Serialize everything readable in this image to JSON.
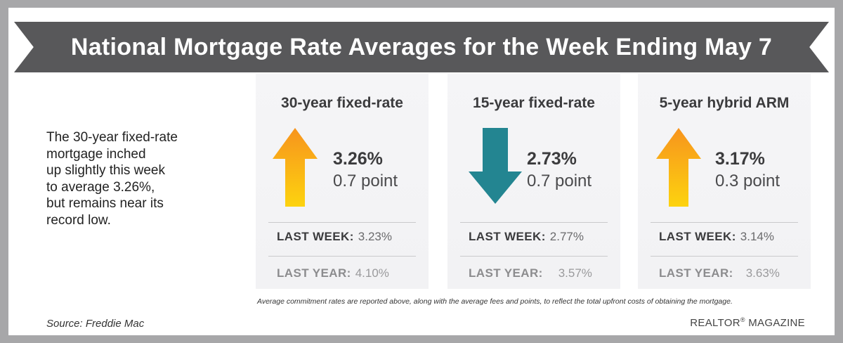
{
  "title": "National Mortgage Rate Averages for the Week Ending May 7",
  "description": [
    "The 30-year fixed-rate",
    "mortgage inched",
    "up slightly this week",
    "to average 3.26%,",
    "but remains near its",
    "record low."
  ],
  "colors": {
    "banner": "#58585a",
    "up_arrow_top": "#f7941d",
    "up_arrow_bottom": "#fdd30f",
    "down_arrow": "#238591"
  },
  "last_week_label": "LAST WEEK:",
  "last_year_label": "LAST YEAR:",
  "panels": [
    {
      "title": "30-year fixed-rate",
      "rate": "3.26%",
      "change": "0.7 point",
      "direction": "up",
      "last_week": "3.23%",
      "last_year": "4.10%"
    },
    {
      "title": "15-year fixed-rate",
      "rate": "2.73%",
      "change": "0.7 point",
      "direction": "down",
      "last_week": "2.77%",
      "last_year": "3.57%"
    },
    {
      "title": "5-year hybrid ARM",
      "rate": "3.17%",
      "change": "0.3 point",
      "direction": "up",
      "last_week": "3.14%",
      "last_year": "3.63%"
    }
  ],
  "footnote": "Average commitment rates are reported above, along with the average fees and points, to reflect the total upfront costs of obtaining the mortgage.",
  "source": "Source: Freddie Mac",
  "brand": {
    "name": "REALTOR",
    "mark": "®",
    "suffix": " MAGAZINE"
  }
}
